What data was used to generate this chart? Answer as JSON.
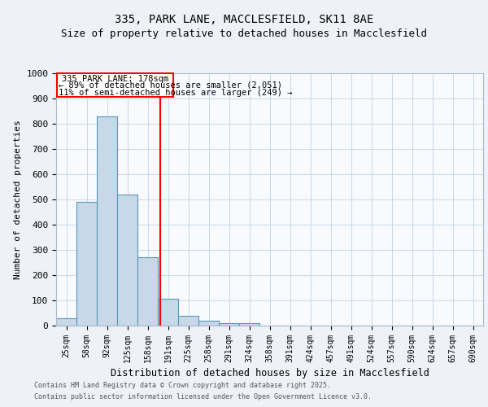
{
  "title1": "335, PARK LANE, MACCLESFIELD, SK11 8AE",
  "title2": "Size of property relative to detached houses in Macclesfield",
  "xlabel": "Distribution of detached houses by size in Macclesfield",
  "ylabel": "Number of detached properties",
  "categories": [
    "25sqm",
    "58sqm",
    "92sqm",
    "125sqm",
    "158sqm",
    "191sqm",
    "225sqm",
    "258sqm",
    "291sqm",
    "324sqm",
    "358sqm",
    "391sqm",
    "424sqm",
    "457sqm",
    "491sqm",
    "524sqm",
    "557sqm",
    "590sqm",
    "624sqm",
    "657sqm",
    "690sqm"
  ],
  "values": [
    30,
    490,
    830,
    520,
    270,
    107,
    40,
    20,
    10,
    10,
    0,
    0,
    0,
    0,
    0,
    0,
    0,
    0,
    0,
    0,
    0
  ],
  "bar_color": "#c8d8e8",
  "bar_edge_color": "#5599bb",
  "vline_x": 4.62,
  "vline_color": "red",
  "ylim": [
    0,
    1000
  ],
  "yticks": [
    0,
    100,
    200,
    300,
    400,
    500,
    600,
    700,
    800,
    900,
    1000
  ],
  "annotation_title": "335 PARK LANE: 178sqm",
  "annotation_line1": "← 89% of detached houses are smaller (2,051)",
  "annotation_line2": "11% of semi-detached houses are larger (249) →",
  "footer1": "Contains HM Land Registry data © Crown copyright and database right 2025.",
  "footer2": "Contains public sector information licensed under the Open Government Licence v3.0.",
  "background_color": "#eef2f7",
  "plot_bg_color": "#f8fafd",
  "grid_color": "#c8d8e8"
}
